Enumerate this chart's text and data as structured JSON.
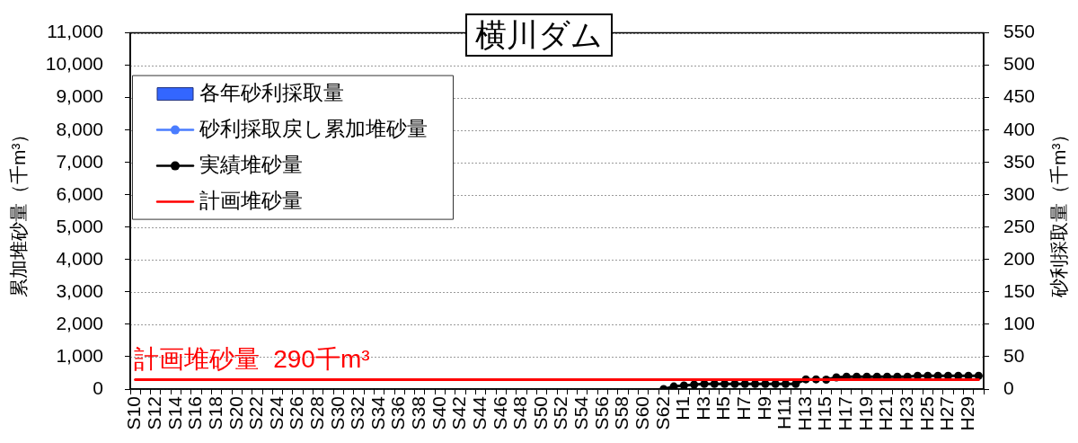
{
  "chart_data": {
    "type": "line",
    "title": "横川ダム",
    "ylabel": "累加堆砂量（千m³）",
    "y2label": "砂利採取量（千m³）",
    "categories": [
      "S10",
      null,
      "S12",
      null,
      "S14",
      null,
      "S16",
      null,
      "S18",
      null,
      "S20",
      null,
      "S22",
      null,
      "S24",
      null,
      "S26",
      null,
      "S28",
      null,
      "S30",
      null,
      "S32",
      null,
      "S34",
      null,
      "S36",
      null,
      "S38",
      null,
      "S40",
      null,
      "S42",
      null,
      "S44",
      null,
      "S46",
      null,
      "S48",
      null,
      "S50",
      null,
      "S52",
      null,
      "S54",
      null,
      "S56",
      null,
      "S58",
      null,
      "S60",
      null,
      "S62",
      null,
      "H1",
      null,
      "H3",
      null,
      "H5",
      null,
      "H7",
      null,
      "H9",
      null,
      "H11",
      null,
      "H13",
      null,
      "H15",
      null,
      "H17",
      null,
      "H19",
      null,
      "H21",
      null,
      "H23",
      null,
      "H25",
      null,
      "H27",
      null,
      "H29",
      null
    ],
    "series": [
      {
        "name": "各年砂利採取量",
        "type": "bar",
        "color": "#3366ff",
        "values": [
          null,
          null,
          null,
          null,
          null,
          null,
          null,
          null,
          null,
          null,
          null,
          null,
          null,
          null,
          null,
          null,
          null,
          null,
          null,
          null,
          null,
          null,
          null,
          null,
          null,
          null,
          null,
          null,
          null,
          null,
          null,
          null,
          null,
          null,
          null,
          null,
          null,
          null,
          null,
          null,
          null,
          null,
          null,
          null,
          null,
          null,
          null,
          null,
          null,
          null,
          null,
          null,
          null,
          null,
          null,
          null,
          null,
          null,
          null,
          null,
          null,
          null,
          null,
          null,
          null,
          null,
          null,
          null,
          null,
          null,
          null,
          null,
          null,
          null,
          null,
          null,
          null,
          null,
          null,
          null,
          null,
          null,
          null,
          null
        ]
      },
      {
        "name": "砂利採取戻し累加堆砂量",
        "color": "#4a7dff",
        "marker": "circle",
        "values": [
          null,
          null,
          null,
          null,
          null,
          null,
          null,
          null,
          null,
          null,
          null,
          null,
          null,
          null,
          null,
          null,
          null,
          null,
          null,
          null,
          null,
          null,
          null,
          null,
          null,
          null,
          null,
          null,
          null,
          null,
          null,
          null,
          null,
          null,
          null,
          null,
          null,
          null,
          null,
          null,
          null,
          null,
          null,
          null,
          null,
          null,
          null,
          null,
          null,
          null,
          null,
          null,
          null,
          null,
          null,
          null,
          null,
          null,
          null,
          null,
          null,
          null,
          null,
          null,
          null,
          null,
          null,
          null,
          null,
          null,
          null,
          null,
          null,
          null,
          null,
          null,
          null,
          null,
          null,
          null,
          null,
          null,
          null,
          null
        ]
      },
      {
        "name": "実績堆砂量",
        "color": "#000000",
        "marker": "circle",
        "values": [
          null,
          null,
          null,
          null,
          null,
          null,
          null,
          null,
          null,
          null,
          null,
          null,
          null,
          null,
          null,
          null,
          null,
          null,
          null,
          null,
          null,
          null,
          null,
          null,
          null,
          null,
          null,
          null,
          null,
          null,
          null,
          null,
          null,
          null,
          null,
          null,
          null,
          null,
          null,
          null,
          null,
          null,
          null,
          null,
          null,
          null,
          null,
          null,
          null,
          null,
          null,
          null,
          0,
          80,
          110,
          140,
          160,
          160,
          160,
          160,
          160,
          160,
          160,
          160,
          160,
          160,
          300,
          300,
          290,
          360,
          380,
          380,
          380,
          380,
          380,
          380,
          380,
          410,
          410,
          410,
          410,
          410,
          410,
          410
        ]
      },
      {
        "name": "計画堆砂量",
        "color": "#ff0000",
        "marker": "none",
        "values": [
          290,
          290,
          290,
          290,
          290,
          290,
          290,
          290,
          290,
          290,
          290,
          290,
          290,
          290,
          290,
          290,
          290,
          290,
          290,
          290,
          290,
          290,
          290,
          290,
          290,
          290,
          290,
          290,
          290,
          290,
          290,
          290,
          290,
          290,
          290,
          290,
          290,
          290,
          290,
          290,
          290,
          290,
          290,
          290,
          290,
          290,
          290,
          290,
          290,
          290,
          290,
          290,
          290,
          290,
          290,
          290,
          290,
          290,
          290,
          290,
          290,
          290,
          290,
          290,
          290,
          290,
          290,
          290,
          290,
          290,
          290,
          290,
          290,
          290,
          290,
          290,
          290,
          290,
          290,
          290,
          290,
          290,
          290,
          290
        ]
      }
    ],
    "ylim": [
      0,
      11000
    ],
    "yticks": [
      0,
      {
        "value": 1000,
        "label": "1,000"
      },
      {
        "value": 2000,
        "label": "2,000"
      },
      {
        "value": 3000,
        "label": "3,000"
      },
      {
        "value": 4000,
        "label": "4,000"
      },
      {
        "value": 5000,
        "label": "5,000"
      },
      {
        "value": 6000,
        "label": "6,000"
      },
      {
        "value": 7000,
        "label": "7,000"
      },
      {
        "value": 8000,
        "label": "8,000"
      },
      {
        "value": 9000,
        "label": "9,000"
      },
      {
        "value": 10000,
        "label": "10,000"
      },
      {
        "value": 11000,
        "label": "11,000"
      }
    ],
    "y2lim": [
      0,
      550
    ],
    "y2ticks": [
      0,
      50,
      100,
      150,
      200,
      250,
      300,
      350,
      400,
      450,
      500,
      550
    ],
    "annotations": [
      {
        "text": "計画堆砂量  290千m³",
        "x": "S10",
        "y": 290
      }
    ],
    "grid": "y",
    "legend": "top left",
    "line_style": "solid"
  }
}
